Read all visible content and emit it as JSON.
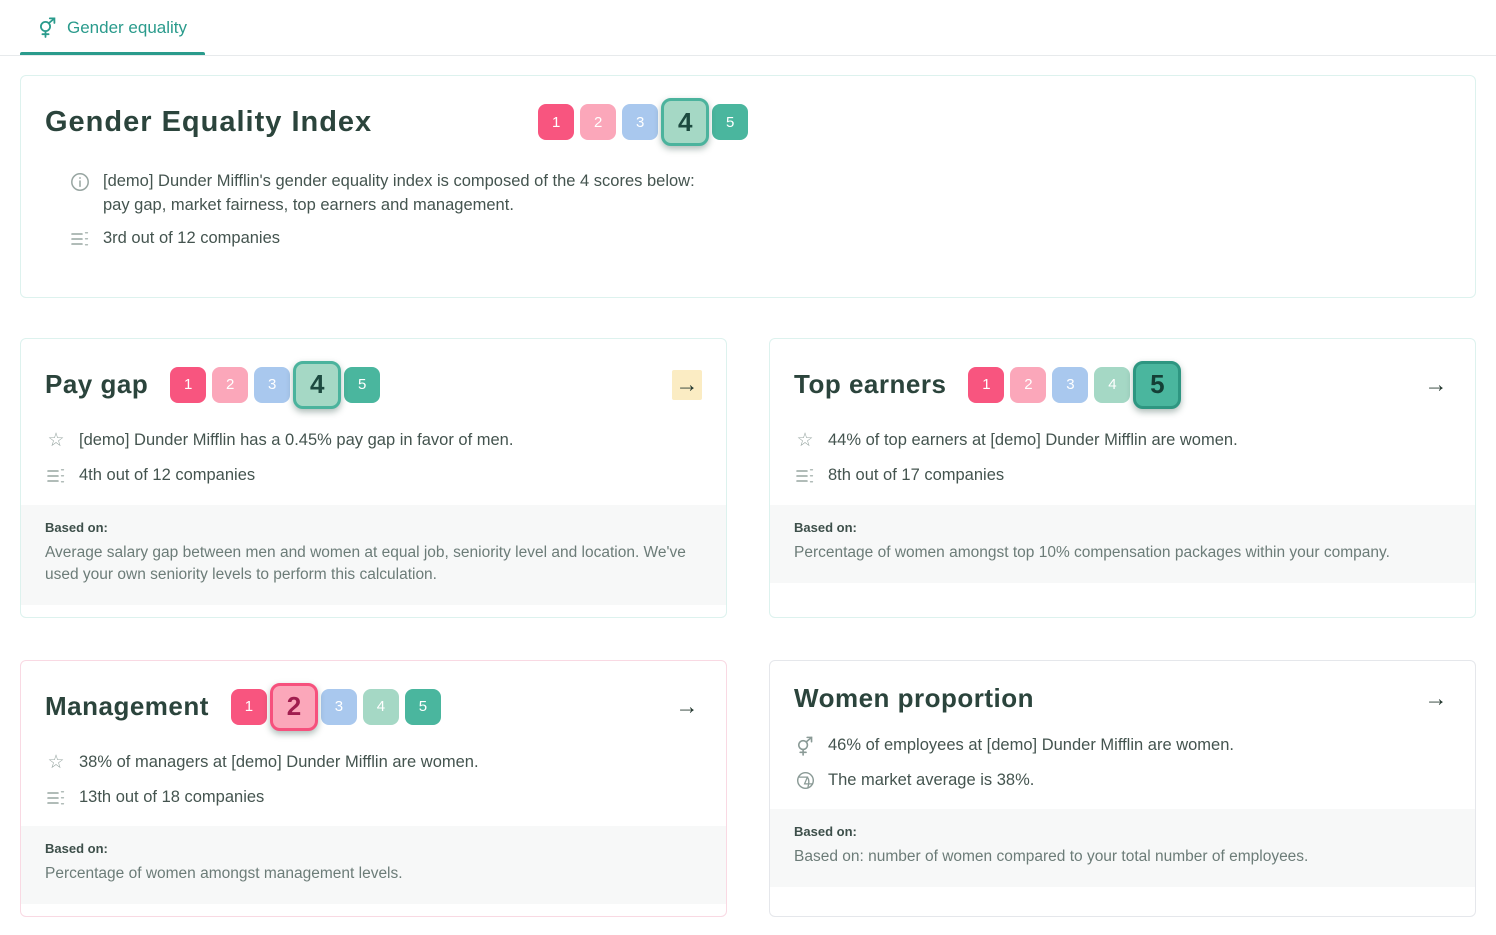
{
  "nav": {
    "tab_label": "Gender equality"
  },
  "icons": {
    "arrow_right": "→",
    "star": "☆"
  },
  "colors": {
    "accent_teal": "#2a9b8c",
    "title_text": "#2b443c",
    "body_text": "#44544f",
    "muted_text": "#6c7c78",
    "card_border_teal": "#ddf2ee",
    "card_border_pink": "#f9d9e3",
    "card_border_gray": "#e5e7eb",
    "based_on_bg": "#f7f8f8",
    "arrow_highlight_bg": "#fbecc3"
  },
  "pills": [
    {
      "n": 1,
      "bg": "#f8557f",
      "border": "#d93c66",
      "text_selected": "#7a1034"
    },
    {
      "n": 2,
      "bg": "#fba7ba",
      "border": "#f6517d",
      "text_selected": "#a01e4f"
    },
    {
      "n": 3,
      "bg": "#a9c8ee",
      "border": "#6f9fd8",
      "text_selected": "#274a73"
    },
    {
      "n": 4,
      "bg": "#a5d8c5",
      "border": "#4bb39d",
      "text_selected": "#1d4a40"
    },
    {
      "n": 5,
      "bg": "#4ab69e",
      "border": "#2e9681",
      "text_selected": "#143f36"
    }
  ],
  "index_card": {
    "title": "Gender Equality Index",
    "score": 4,
    "info": "[demo] Dunder Mifflin's gender equality index is composed of the 4 scores below: pay gap, market fairness, top earners and management.",
    "rank": "3rd out of 12 companies"
  },
  "cards": [
    {
      "title": "Pay gap",
      "score": 4,
      "bullet1": "[demo] Dunder Mifflin has a 0.45% pay gap in favor of men.",
      "bullet2": "4th out of 12 companies",
      "based_on_label": "Based on:",
      "based_on": "Average salary gap between men and women at equal job, seniority level and location. We've used your own seniority levels to perform this calculation."
    },
    {
      "title": "Top earners",
      "score": 5,
      "bullet1": "44% of top earners at [demo] Dunder Mifflin are women.",
      "bullet2": "8th out of 17 companies",
      "based_on_label": "Based on:",
      "based_on": "Percentage of women amongst top 10% compensation packages within your company."
    },
    {
      "title": "Management",
      "score": 2,
      "bullet1": "38% of managers at [demo] Dunder Mifflin are women.",
      "bullet2": "13th out of 18 companies",
      "based_on_label": "Based on:",
      "based_on": "Percentage of women amongst management levels."
    },
    {
      "title": "Women proportion",
      "bullet1": "46% of employees at [demo] Dunder Mifflin are women.",
      "bullet2": "The market average is 38%.",
      "based_on_label": "Based on:",
      "based_on": "Based on: number of women compared to your total number of employees."
    }
  ]
}
